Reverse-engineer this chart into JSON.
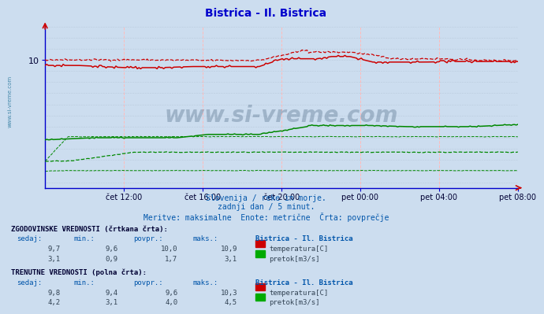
{
  "title": "Bistrica - Il. Bistrica",
  "bg_color": "#ccddef",
  "plot_bg": "#ccddef",
  "title_color": "#0000cc",
  "axis_color": "#0000cc",
  "grid_v_color": "#ffaaaa",
  "grid_h_color": "#bbccdd",
  "x_labels": [
    "čet 12:00",
    "čet 16:00",
    "čet 20:00",
    "pet 00:00",
    "pet 04:00",
    "pet 08:00"
  ],
  "n_points": 288,
  "temp_solid_color": "#cc0000",
  "temp_dash_color": "#cc0000",
  "flow_solid_color": "#008800",
  "flow_dash_color": "#008800",
  "sidebar_text": "www.si-vreme.com",
  "sidebar_color": "#4488aa",
  "watermark": "www.si-vreme.com",
  "sub1": "Slovenija / reke in morje.",
  "sub2": "zadnji dan / 5 minut.",
  "sub3": "Meritve: maksimalne  Enote: metrične  Črta: povprečje",
  "hist_header": "ZGODOVINSKE VREDNOSTI (črtkana črta):",
  "curr_header": "TRENUTNE VREDNOSTI (polna črta):",
  "col_headers": [
    "sedaj:",
    "min.:",
    "povpr.:",
    "maks.:",
    "Bistrica - Il. Bistrica"
  ],
  "hist_temp_vals": [
    "9,7",
    "9,6",
    "10,0",
    "10,9"
  ],
  "hist_flow_vals": [
    "3,1",
    "0,9",
    "1,7",
    "3,1"
  ],
  "curr_temp_vals": [
    "9,8",
    "9,4",
    "9,6",
    "10,3"
  ],
  "curr_flow_vals": [
    "4,2",
    "3,1",
    "4,0",
    "4,5"
  ],
  "temp_label": "temperatura[C]",
  "flow_label": "pretok[m3/s]",
  "y_min": -1.5,
  "y_max": 13.0,
  "y_tick_val": 10
}
